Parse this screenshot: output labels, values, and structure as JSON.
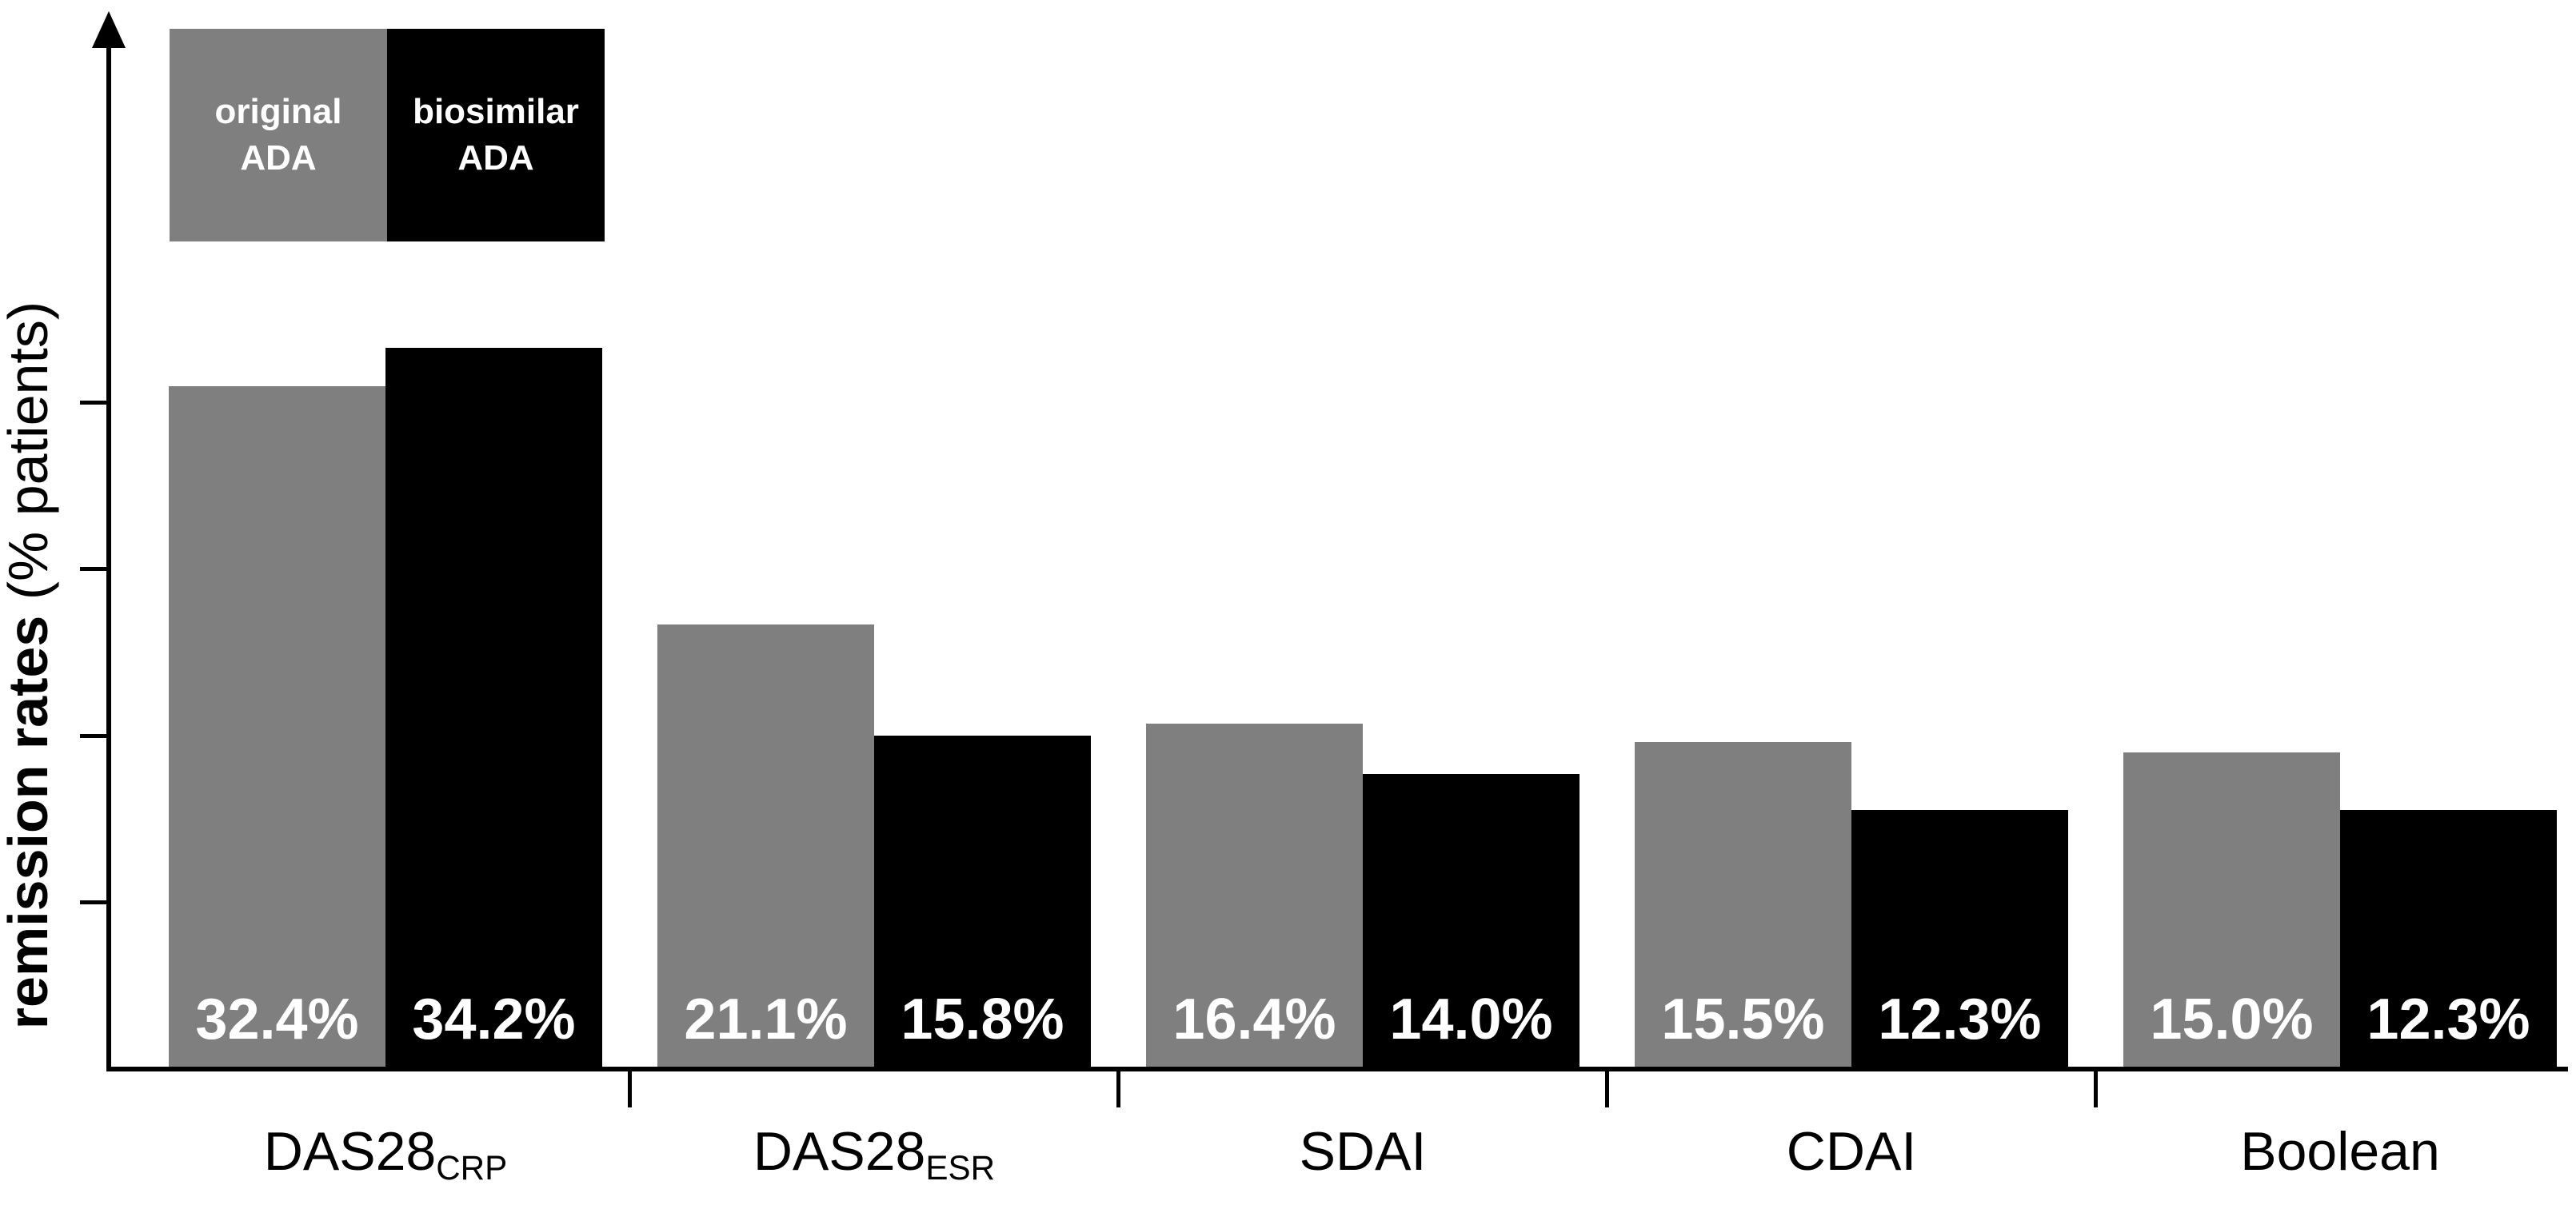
{
  "chart_data": {
    "type": "bar",
    "title": "",
    "ylabel_bold": "remission rates",
    "ylabel_normal": " (% patients)",
    "categories": [
      {
        "base": "DAS28",
        "subscript": "CRP"
      },
      {
        "base": "DAS28",
        "subscript": "ESR"
      },
      {
        "base": "SDAI",
        "subscript": ""
      },
      {
        "base": "CDAI",
        "subscript": ""
      },
      {
        "base": "Boolean",
        "subscript": ""
      }
    ],
    "series": [
      {
        "name": "original ADA",
        "legend_label": "original\nADA",
        "color": "#7f7f7f",
        "values": [
          32.4,
          21.1,
          16.4,
          15.5,
          15.0
        ],
        "labels": [
          "32.4%",
          "21.1%",
          "16.4%",
          "15.5%",
          "15.0%"
        ]
      },
      {
        "name": "biosimilar ADA",
        "legend_label": "biosimilar\nADA",
        "color": "#000000",
        "values": [
          34.2,
          15.8,
          14.0,
          12.3,
          12.3
        ],
        "labels": [
          "34.2%",
          "15.8%",
          "14.0%",
          "12.3%",
          "12.3%"
        ]
      }
    ],
    "value_label_color": "#ffffff",
    "axis_color": "#000000",
    "ylim": [
      0,
      40
    ],
    "grid": false,
    "legend_position": "top-left",
    "y_tick_count": 4,
    "y_ticks_labeled": false
  }
}
